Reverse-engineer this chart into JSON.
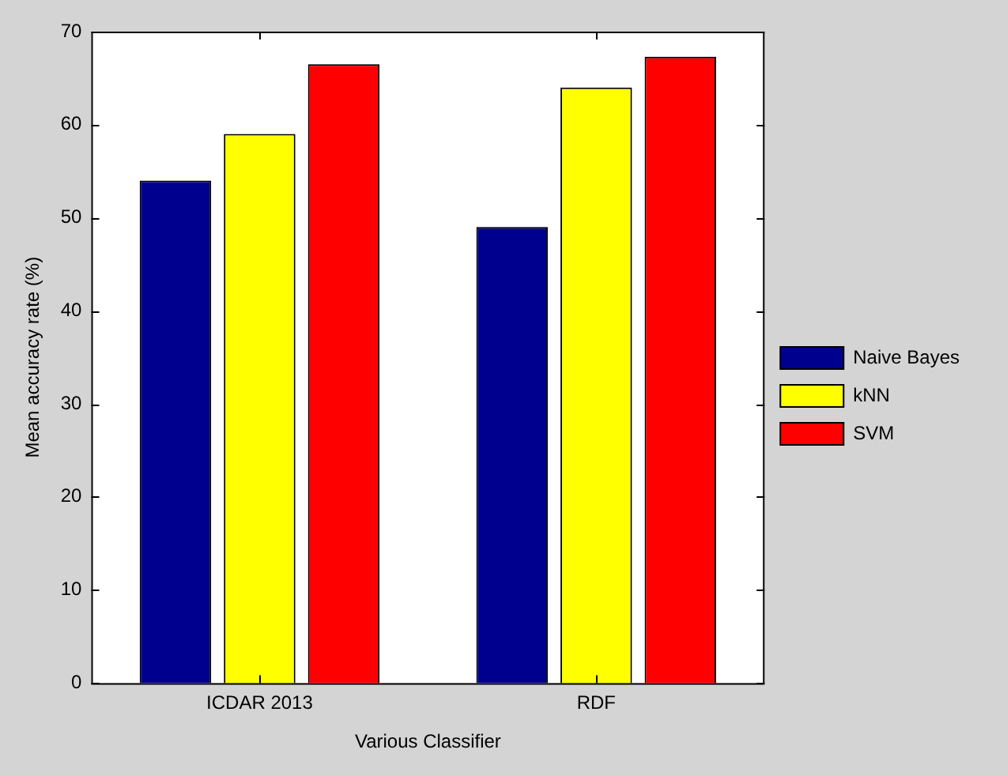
{
  "chart_data": {
    "type": "bar",
    "categories": [
      "ICDAR 2013",
      "RDF"
    ],
    "series": [
      {
        "name": "Naive Bayes",
        "color": "#00008f",
        "values": [
          54,
          49
        ]
      },
      {
        "name": "kNN",
        "color": "#ffff00",
        "values": [
          59,
          64
        ]
      },
      {
        "name": "SVM",
        "color": "#ff0000",
        "values": [
          66.5,
          67.3
        ]
      }
    ],
    "xlabel": "Various Classifier",
    "ylabel": "Mean accuracy rate (%)",
    "ylim": [
      0,
      70
    ],
    "yticks": [
      0,
      10,
      20,
      30,
      40,
      50,
      60,
      70
    ],
    "grid": false,
    "legend": "right"
  }
}
